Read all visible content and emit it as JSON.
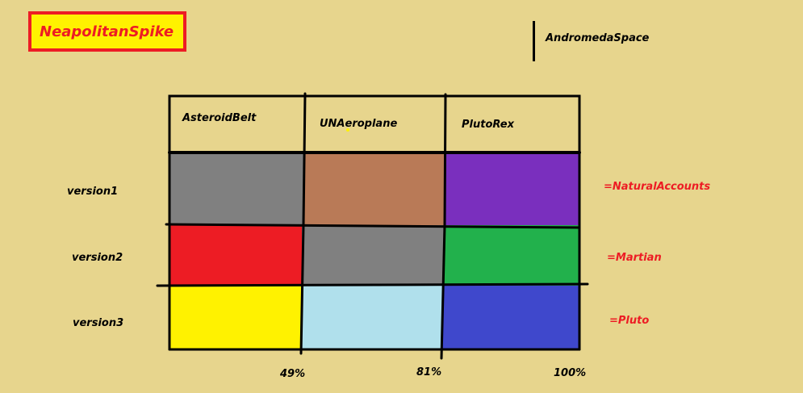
{
  "title": "NeapolitanSpike",
  "side_label": "AndromedaSpace",
  "columns": [
    {
      "label": "AsteroidBelt"
    },
    {
      "label": "UNAeroplane"
    },
    {
      "label": "PlutoRex"
    }
  ],
  "rows": [
    {
      "label": "version1",
      "legend": "=NaturalAccounts",
      "colors": [
        "#808080",
        "#b97a57",
        "#7a2fbe"
      ]
    },
    {
      "label": "version2",
      "legend": "=Martian",
      "colors": [
        "#ed1c24",
        "#808080",
        "#22b14c"
      ]
    },
    {
      "label": "version3",
      "legend": "=Pluto",
      "colors": [
        "#fff200",
        "#b0e0ec",
        "#3f48cc"
      ]
    }
  ],
  "percent_marks": [
    "49%",
    "81%",
    "100%"
  ],
  "colors": {
    "background": "#e7d58d",
    "title_fill": "#fff200",
    "title_border": "#ed1c24",
    "legend_text": "#ed1c24",
    "lines": "#000000"
  }
}
